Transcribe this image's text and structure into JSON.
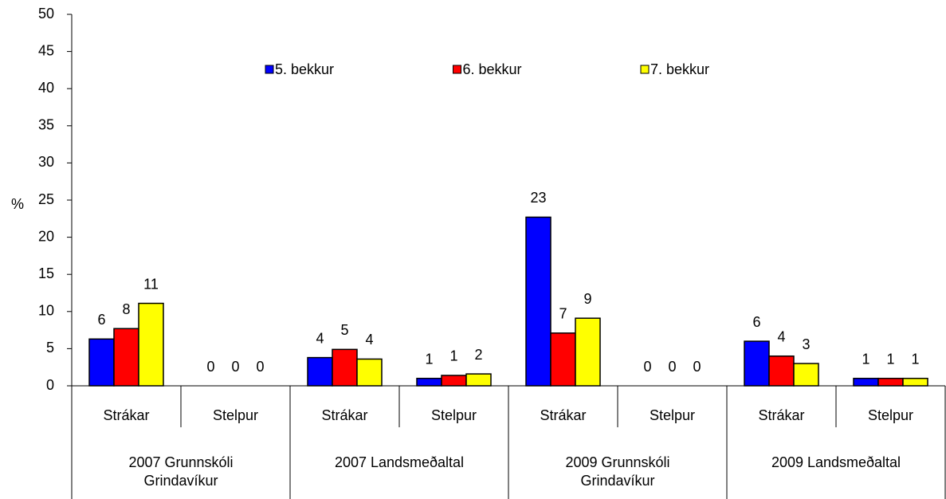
{
  "chart_data": {
    "type": "bar",
    "ylabel": "%",
    "categories": [
      "Strákar",
      "Stelpur",
      "Strákar",
      "Stelpur",
      "Strákar",
      "Stelpur",
      "Strákar",
      "Stelpur"
    ],
    "groups": [
      "2007 Grunnskóli Grindavíkur",
      "2007 Landsmeðaltal",
      "2009 Grunnskóli Grindavíkur",
      "2009 Landsmeðaltal"
    ],
    "series": [
      {
        "name": "5. bekkur",
        "color": "#0000ff",
        "values": [
          6.3,
          0,
          3.8,
          1.0,
          22.7,
          0,
          6.0,
          1.0
        ],
        "value_labels": [
          "6",
          "0",
          "4",
          "1",
          "23",
          "0",
          "6",
          "1"
        ]
      },
      {
        "name": "6. bekkur",
        "color": "#ff0000",
        "values": [
          7.7,
          0,
          4.9,
          1.4,
          7.1,
          0,
          4.0,
          1.0
        ],
        "value_labels": [
          "8",
          "0",
          "5",
          "1",
          "7",
          "0",
          "4",
          "1"
        ]
      },
      {
        "name": "7. bekkur",
        "color": "#ffff00",
        "values": [
          11.1,
          0,
          3.6,
          1.6,
          9.1,
          0,
          3.0,
          1.0
        ],
        "value_labels": [
          "11",
          "0",
          "4",
          "2",
          "9",
          "0",
          "3",
          "1"
        ]
      }
    ],
    "ylim": [
      0,
      50
    ],
    "yticks": [
      0,
      5,
      10,
      15,
      20,
      25,
      30,
      35,
      40,
      45,
      50
    ],
    "legend": "top"
  }
}
